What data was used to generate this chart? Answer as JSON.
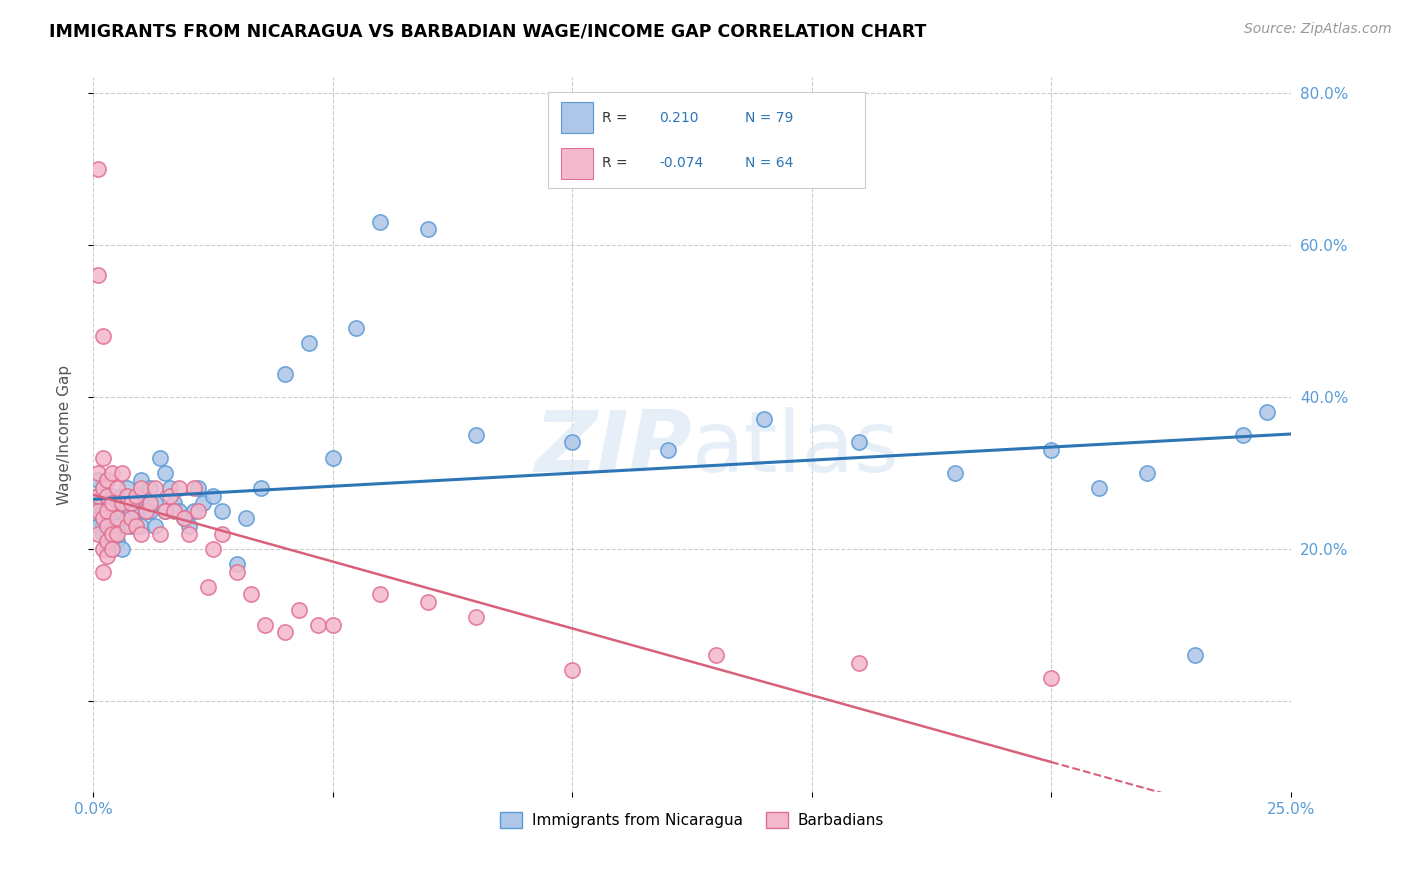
{
  "title": "IMMIGRANTS FROM NICARAGUA VS BARBADIAN WAGE/INCOME GAP CORRELATION CHART",
  "source": "Source: ZipAtlas.com",
  "ylabel": "Wage/Income Gap",
  "x_min": 0.0,
  "x_max": 0.25,
  "y_min": -0.12,
  "y_max": 0.82,
  "x_ticks": [
    0.0,
    0.05,
    0.1,
    0.15,
    0.2,
    0.25
  ],
  "x_tick_labels": [
    "0.0%",
    "",
    "",
    "",
    "",
    "25.0%"
  ],
  "y_ticks": [
    0.0,
    0.2,
    0.4,
    0.6,
    0.8
  ],
  "y_tick_labels": [
    "",
    "20.0%",
    "40.0%",
    "60.0%",
    "80.0%"
  ],
  "nicaragua_color": "#aec6e8",
  "nicaragua_edge_color": "#5b9bd5",
  "barbadian_color": "#f4b8cc",
  "barbadian_edge_color": "#e07090",
  "line_blue": "#2e75b6",
  "line_pink": "#d9607a",
  "R_nicaragua": 0.21,
  "N_nicaragua": 79,
  "R_barbadian": -0.074,
  "N_barbadian": 64,
  "watermark": "ZIPatlas",
  "legend_nicaragua": "Immigrants from Nicaragua",
  "legend_barbadian": "Barbadians",
  "nicaragua_x": [
    0.001,
    0.001,
    0.001,
    0.001,
    0.001,
    0.002,
    0.002,
    0.002,
    0.002,
    0.002,
    0.002,
    0.003,
    0.003,
    0.003,
    0.003,
    0.003,
    0.003,
    0.003,
    0.004,
    0.004,
    0.004,
    0.004,
    0.004,
    0.005,
    0.005,
    0.005,
    0.005,
    0.006,
    0.006,
    0.006,
    0.007,
    0.007,
    0.007,
    0.008,
    0.008,
    0.009,
    0.009,
    0.01,
    0.01,
    0.011,
    0.011,
    0.012,
    0.012,
    0.013,
    0.013,
    0.014,
    0.015,
    0.015,
    0.016,
    0.017,
    0.018,
    0.019,
    0.02,
    0.021,
    0.022,
    0.023,
    0.025,
    0.027,
    0.03,
    0.032,
    0.035,
    0.04,
    0.045,
    0.05,
    0.055,
    0.06,
    0.07,
    0.08,
    0.1,
    0.12,
    0.14,
    0.16,
    0.18,
    0.2,
    0.21,
    0.22,
    0.23,
    0.24,
    0.245
  ],
  "nicaragua_y": [
    0.27,
    0.29,
    0.24,
    0.26,
    0.23,
    0.25,
    0.27,
    0.22,
    0.24,
    0.26,
    0.28,
    0.21,
    0.23,
    0.25,
    0.27,
    0.29,
    0.2,
    0.22,
    0.23,
    0.25,
    0.27,
    0.2,
    0.22,
    0.24,
    0.26,
    0.21,
    0.23,
    0.25,
    0.27,
    0.2,
    0.26,
    0.24,
    0.28,
    0.23,
    0.25,
    0.25,
    0.27,
    0.23,
    0.29,
    0.25,
    0.27,
    0.25,
    0.28,
    0.26,
    0.23,
    0.32,
    0.25,
    0.3,
    0.28,
    0.26,
    0.25,
    0.24,
    0.23,
    0.25,
    0.28,
    0.26,
    0.27,
    0.25,
    0.18,
    0.24,
    0.28,
    0.43,
    0.47,
    0.32,
    0.49,
    0.63,
    0.62,
    0.35,
    0.34,
    0.33,
    0.37,
    0.34,
    0.3,
    0.33,
    0.28,
    0.3,
    0.06,
    0.35,
    0.38
  ],
  "barbadian_x": [
    0.001,
    0.001,
    0.001,
    0.001,
    0.001,
    0.001,
    0.002,
    0.002,
    0.002,
    0.002,
    0.002,
    0.002,
    0.003,
    0.003,
    0.003,
    0.003,
    0.003,
    0.003,
    0.004,
    0.004,
    0.004,
    0.004,
    0.005,
    0.005,
    0.005,
    0.006,
    0.006,
    0.007,
    0.007,
    0.008,
    0.008,
    0.009,
    0.009,
    0.01,
    0.01,
    0.011,
    0.012,
    0.013,
    0.014,
    0.015,
    0.016,
    0.017,
    0.018,
    0.019,
    0.02,
    0.021,
    0.022,
    0.024,
    0.025,
    0.027,
    0.03,
    0.033,
    0.036,
    0.04,
    0.043,
    0.047,
    0.05,
    0.06,
    0.07,
    0.08,
    0.1,
    0.13,
    0.16,
    0.2
  ],
  "barbadian_y": [
    0.27,
    0.25,
    0.3,
    0.7,
    0.56,
    0.22,
    0.2,
    0.24,
    0.28,
    0.32,
    0.17,
    0.48,
    0.21,
    0.25,
    0.29,
    0.19,
    0.23,
    0.27,
    0.22,
    0.26,
    0.3,
    0.2,
    0.24,
    0.28,
    0.22,
    0.26,
    0.3,
    0.27,
    0.23,
    0.26,
    0.24,
    0.27,
    0.23,
    0.22,
    0.28,
    0.25,
    0.26,
    0.28,
    0.22,
    0.25,
    0.27,
    0.25,
    0.28,
    0.24,
    0.22,
    0.28,
    0.25,
    0.15,
    0.2,
    0.22,
    0.17,
    0.14,
    0.1,
    0.09,
    0.12,
    0.1,
    0.1,
    0.14,
    0.13,
    0.11,
    0.04,
    0.06,
    0.05,
    0.03
  ]
}
